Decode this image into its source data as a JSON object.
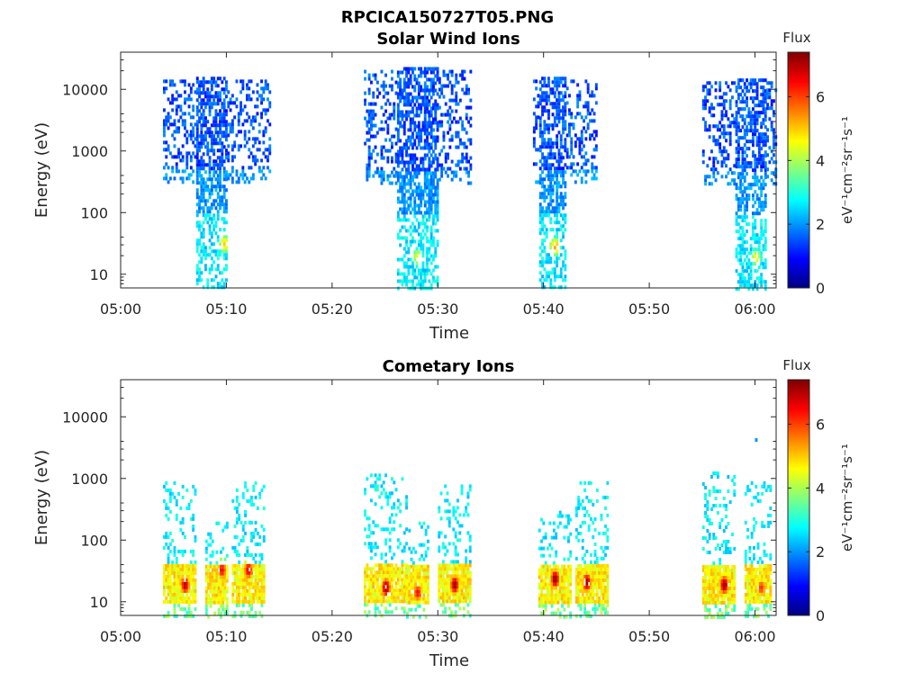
{
  "figure": {
    "title": "RPCICA150727T05.PNG"
  },
  "colorbar": {
    "label": "Flux",
    "unit": "eV⁻¹cm⁻²sr⁻¹s⁻¹",
    "colormap": "jet",
    "range": [
      0,
      7.4
    ],
    "ticks": [
      "0",
      "2",
      "4",
      "6"
    ]
  },
  "chart_data": [
    {
      "type": "heatmap",
      "title": "Solar Wind Ions",
      "xlabel": "Time",
      "ylabel": "Energy (eV)",
      "xlim": [
        "05:00",
        "06:02"
      ],
      "ylim": [
        6,
        40000
      ],
      "yscale": "log",
      "xticks": [
        "05:00",
        "05:10",
        "05:20",
        "05:30",
        "05:40",
        "05:50",
        "06:00"
      ],
      "yticks": [
        "10",
        "100",
        "1000",
        "10000"
      ],
      "bursts": [
        {
          "start": "05:04",
          "end": "05:14",
          "core_start": "05:07",
          "core_end": "05:10",
          "peak_time": "05:09.7",
          "peak_energy": 33,
          "peak_flux": 5.0,
          "max_energy": 16000,
          "min_energy": 6
        },
        {
          "start": "05:23",
          "end": "05:33",
          "core_start": "05:26",
          "core_end": "05:30",
          "peak_time": "05:28",
          "peak_energy": 20,
          "peak_flux": 4.6,
          "max_energy": 23000,
          "min_energy": 6
        },
        {
          "start": "05:39",
          "end": "05:45",
          "core_start": "05:39.5",
          "core_end": "05:42",
          "peak_time": "05:41",
          "peak_energy": 30,
          "peak_flux": 5.3,
          "max_energy": 16000,
          "min_energy": 6
        },
        {
          "start": "05:55",
          "end": "06:02",
          "core_start": "05:58",
          "core_end": "06:01",
          "peak_time": "06:00",
          "peak_energy": 20,
          "peak_flux": 4.6,
          "max_energy": 15000,
          "min_energy": 6
        }
      ]
    },
    {
      "type": "heatmap",
      "title": "Cometary Ions",
      "xlabel": "Time",
      "ylabel": "Energy (eV)",
      "xlim": [
        "05:00",
        "06:02"
      ],
      "ylim": [
        6,
        40000
      ],
      "yscale": "log",
      "xticks": [
        "05:00",
        "05:10",
        "05:20",
        "05:30",
        "05:40",
        "05:50",
        "06:00"
      ],
      "yticks": [
        "10",
        "100",
        "1000",
        "10000"
      ],
      "bursts": [
        {
          "start": "05:04",
          "end": "05:07",
          "peak_time": "05:06",
          "peak_energy": 20,
          "peak_flux": 7.0,
          "max_energy": 900
        },
        {
          "start": "05:08",
          "end": "05:10",
          "peak_time": "05:09.5",
          "peak_energy": 35,
          "peak_flux": 6.6,
          "max_energy": 200
        },
        {
          "start": "05:10.5",
          "end": "05:13.5",
          "peak_time": "05:12",
          "peak_energy": 35,
          "peak_flux": 6.8,
          "max_energy": 900
        },
        {
          "start": "05:23",
          "end": "05:27",
          "peak_time": "05:25",
          "peak_energy": 18,
          "peak_flux": 7.3,
          "max_energy": 1200
        },
        {
          "start": "05:27",
          "end": "05:29",
          "peak_time": "05:28",
          "peak_energy": 15,
          "peak_flux": 6.5,
          "max_energy": 200
        },
        {
          "start": "05:30",
          "end": "05:33",
          "peak_time": "05:31.5",
          "peak_energy": 20,
          "peak_flux": 7.2,
          "max_energy": 800
        },
        {
          "start": "05:39.5",
          "end": "05:42.5",
          "peak_time": "05:41",
          "peak_energy": 25,
          "peak_flux": 7.3,
          "max_energy": 300
        },
        {
          "start": "05:43",
          "end": "05:46",
          "peak_time": "05:44",
          "peak_energy": 22,
          "peak_flux": 7.2,
          "max_energy": 900
        },
        {
          "start": "05:55",
          "end": "05:58",
          "peak_time": "05:57",
          "peak_energy": 20,
          "peak_flux": 7.2,
          "max_energy": 1300
        },
        {
          "start": "05:59",
          "end": "06:01.5",
          "peak_time": "06:00.5",
          "peak_energy": 18,
          "peak_flux": 6.2,
          "max_energy": 900
        }
      ],
      "isolated_points": [
        {
          "time": "06:00",
          "energy": 4500,
          "flux": 2.0
        }
      ]
    }
  ]
}
